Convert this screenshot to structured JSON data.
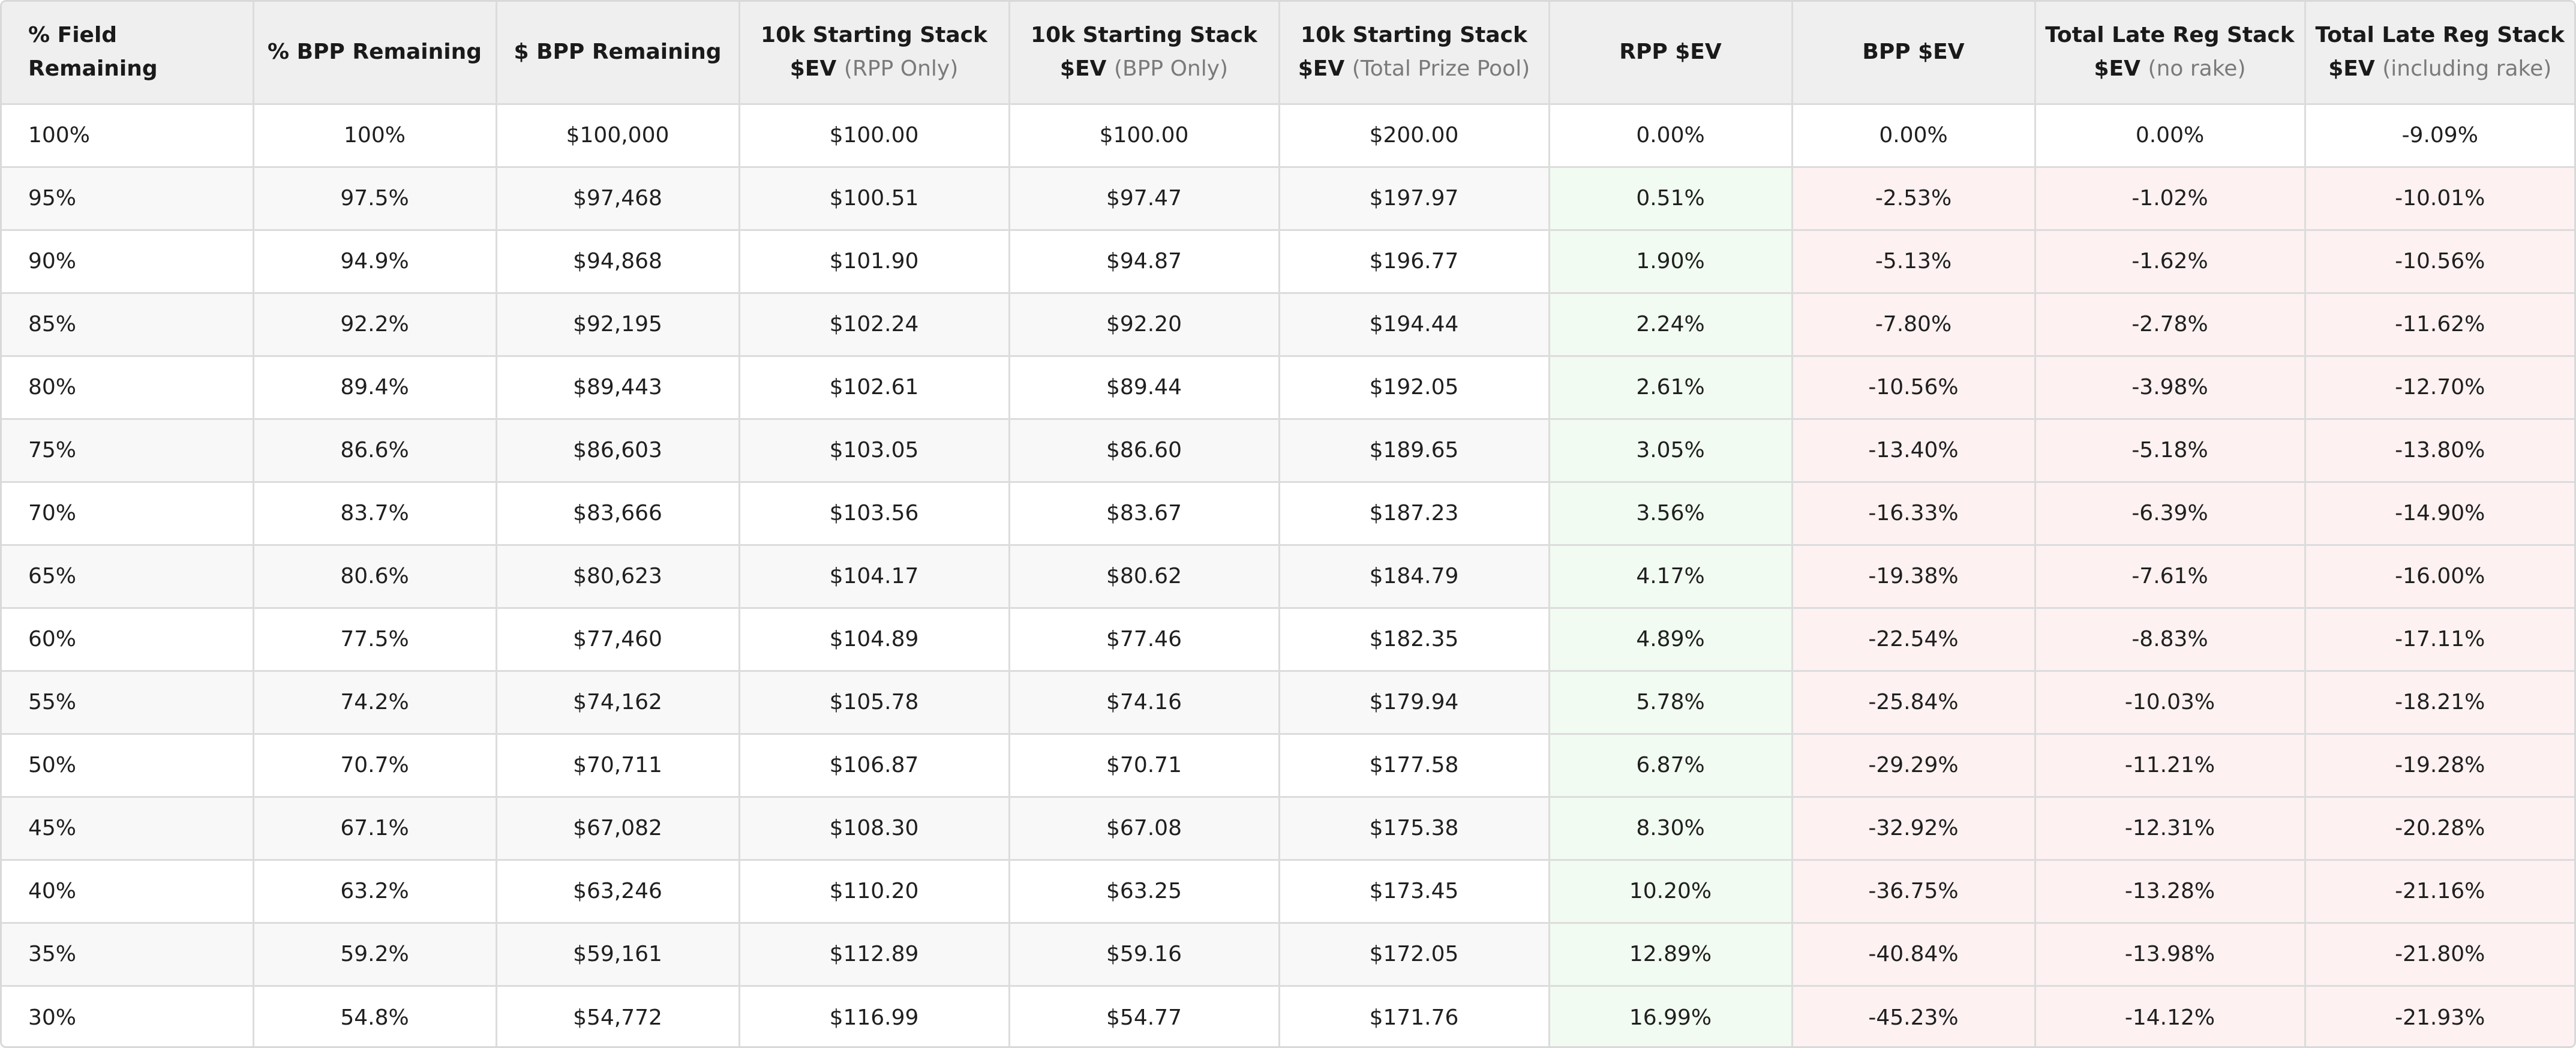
{
  "table": {
    "headers": [
      {
        "main": "% Field Remaining",
        "sub": ""
      },
      {
        "main": "% BPP Remaining",
        "sub": ""
      },
      {
        "main": "$ BPP Remaining",
        "sub": ""
      },
      {
        "main": "10k Starting Stack",
        "line2": "$EV",
        "muted": "(RPP Only)"
      },
      {
        "main": "10k Starting Stack",
        "line2": "$EV",
        "muted": "(BPP Only)"
      },
      {
        "main": "10k Starting Stack",
        "line2": "$EV",
        "muted": "(Total Prize Pool)"
      },
      {
        "main": "RPP $EV",
        "sub": ""
      },
      {
        "main": "BPP $EV",
        "sub": ""
      },
      {
        "main": "Total Late Reg Stack",
        "line2": "$EV",
        "muted": "(no rake)"
      },
      {
        "main": "Total Late Reg Stack",
        "line2": "$EV",
        "muted": "(including rake)"
      }
    ],
    "rows": [
      [
        "100%",
        "100%",
        "$100,000",
        "$100.00",
        "$100.00",
        "$200.00",
        "0.00%",
        "0.00%",
        "0.00%",
        "-9.09%"
      ],
      [
        "95%",
        "97.5%",
        "$97,468",
        "$100.51",
        "$97.47",
        "$197.97",
        "0.51%",
        "-2.53%",
        "-1.02%",
        "-10.01%"
      ],
      [
        "90%",
        "94.9%",
        "$94,868",
        "$101.90",
        "$94.87",
        "$196.77",
        "1.90%",
        "-5.13%",
        "-1.62%",
        "-10.56%"
      ],
      [
        "85%",
        "92.2%",
        "$92,195",
        "$102.24",
        "$92.20",
        "$194.44",
        "2.24%",
        "-7.80%",
        "-2.78%",
        "-11.62%"
      ],
      [
        "80%",
        "89.4%",
        "$89,443",
        "$102.61",
        "$89.44",
        "$192.05",
        "2.61%",
        "-10.56%",
        "-3.98%",
        "-12.70%"
      ],
      [
        "75%",
        "86.6%",
        "$86,603",
        "$103.05",
        "$86.60",
        "$189.65",
        "3.05%",
        "-13.40%",
        "-5.18%",
        "-13.80%"
      ],
      [
        "70%",
        "83.7%",
        "$83,666",
        "$103.56",
        "$83.67",
        "$187.23",
        "3.56%",
        "-16.33%",
        "-6.39%",
        "-14.90%"
      ],
      [
        "65%",
        "80.6%",
        "$80,623",
        "$104.17",
        "$80.62",
        "$184.79",
        "4.17%",
        "-19.38%",
        "-7.61%",
        "-16.00%"
      ],
      [
        "60%",
        "77.5%",
        "$77,460",
        "$104.89",
        "$77.46",
        "$182.35",
        "4.89%",
        "-22.54%",
        "-8.83%",
        "-17.11%"
      ],
      [
        "55%",
        "74.2%",
        "$74,162",
        "$105.78",
        "$74.16",
        "$179.94",
        "5.78%",
        "-25.84%",
        "-10.03%",
        "-18.21%"
      ],
      [
        "50%",
        "70.7%",
        "$70,711",
        "$106.87",
        "$70.71",
        "$177.58",
        "6.87%",
        "-29.29%",
        "-11.21%",
        "-19.28%"
      ],
      [
        "45%",
        "67.1%",
        "$67,082",
        "$108.30",
        "$67.08",
        "$175.38",
        "8.30%",
        "-32.92%",
        "-12.31%",
        "-20.28%"
      ],
      [
        "40%",
        "63.2%",
        "$63,246",
        "$110.20",
        "$63.25",
        "$173.45",
        "10.20%",
        "-36.75%",
        "-13.28%",
        "-21.16%"
      ],
      [
        "35%",
        "59.2%",
        "$59,161",
        "$112.89",
        "$59.16",
        "$172.05",
        "12.89%",
        "-40.84%",
        "-13.98%",
        "-21.80%"
      ],
      [
        "30%",
        "54.8%",
        "$54,772",
        "$116.99",
        "$54.77",
        "$171.76",
        "16.99%",
        "-45.23%",
        "-14.12%",
        "-21.93%"
      ]
    ]
  },
  "colors": {
    "header_bg": "#efefef",
    "row_stripe": "#f8f8f8",
    "positive_bg": "#f1fbf1",
    "negative_bg": "#fdf1f1",
    "muted_text": "#7a7a7a"
  }
}
